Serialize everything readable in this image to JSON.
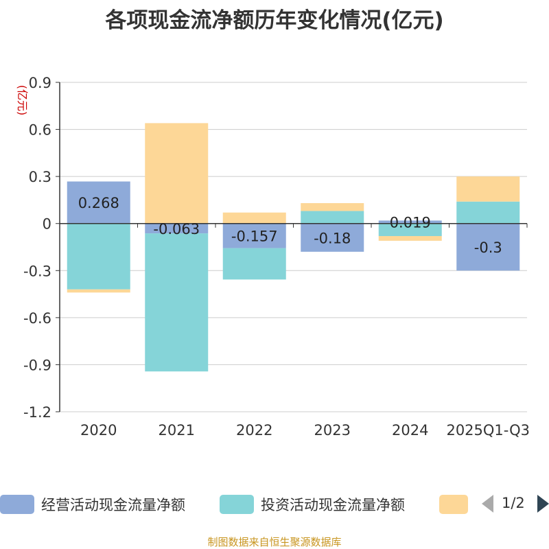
{
  "title": "各项现金流净额历年变化情况(亿元)",
  "source_note": "制图数据来自恒生聚源数据库",
  "pager": {
    "text": "1/2",
    "prev_icon": "triangle-left-icon",
    "next_icon": "triangle-right-icon"
  },
  "legend": [
    {
      "label": "经营活动现金流量净额",
      "color": "#8eaad9"
    },
    {
      "label": "投资活动现金流量净额",
      "color": "#85d4d8"
    },
    {
      "label": "",
      "color": "#fdd797"
    }
  ],
  "chart_data": {
    "type": "bar",
    "stacked": true,
    "title": "各项现金流净额历年变化情况(亿元)",
    "ylabel": "(亿元)",
    "ylim": [
      -1.2,
      0.9
    ],
    "yticks": [
      "0.9",
      "0.6",
      "0.3",
      "0",
      "-0.3",
      "-0.6",
      "-0.9",
      "-1.2"
    ],
    "grid": true,
    "legend_position": "bottom",
    "categories": [
      "2020",
      "2021",
      "2022",
      "2023",
      "2024",
      "2025Q1-Q3"
    ],
    "series": [
      {
        "name": "经营活动现金流量净额",
        "color": "#8eaad9",
        "values": [
          0.268,
          -0.063,
          -0.157,
          -0.18,
          0.019,
          -0.3
        ],
        "labels": [
          "0.268",
          "-0.063",
          "-0.157",
          "-0.18",
          "0.019",
          "-0.3"
        ]
      },
      {
        "name": "投资活动现金流量净额",
        "color": "#85d4d8",
        "values": [
          -0.42,
          -0.88,
          -0.2,
          0.08,
          -0.08,
          0.14
        ]
      },
      {
        "color": "#fdd797",
        "values": [
          -0.02,
          0.64,
          0.07,
          0.05,
          -0.03,
          0.16
        ]
      }
    ]
  }
}
